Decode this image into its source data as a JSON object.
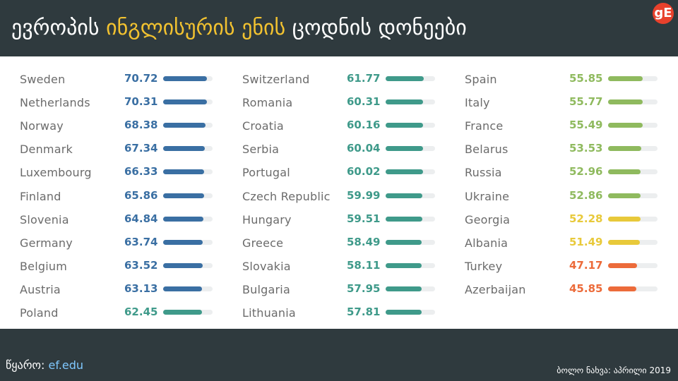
{
  "header": {
    "title_part1": "ევროპის ",
    "title_highlight": "ინგლისურის ენის",
    "title_part2": " ცოდნის დონეები",
    "logo_text": "gE"
  },
  "colors": {
    "very_high": "#3a6fa3",
    "high": "#3f9a8a",
    "moderate": "#8fba5e",
    "low": "#e8c93a",
    "very_low": "#ec6b3a",
    "highlight_title": "#f2c230"
  },
  "footer": {
    "source_label": "წყარო: ",
    "source_link": "ef.edu",
    "last_update": "ბოლო ნახვა: აპრილი 2019"
  },
  "chart_data": {
    "type": "bar",
    "title": "",
    "xlabel": "",
    "ylabel": "",
    "xlim": [
      0,
      80
    ],
    "grid": false,
    "columns": [
      [
        {
          "country": "Sweden",
          "value": 70.72,
          "level": "very_high"
        },
        {
          "country": "Netherlands",
          "value": 70.31,
          "level": "very_high"
        },
        {
          "country": "Norway",
          "value": 68.38,
          "level": "very_high"
        },
        {
          "country": "Denmark",
          "value": 67.34,
          "level": "very_high"
        },
        {
          "country": "Luxembourg",
          "value": 66.33,
          "level": "very_high"
        },
        {
          "country": "Finland",
          "value": 65.86,
          "level": "very_high"
        },
        {
          "country": "Slovenia",
          "value": 64.84,
          "level": "very_high"
        },
        {
          "country": "Germany",
          "value": 63.74,
          "level": "very_high"
        },
        {
          "country": "Belgium",
          "value": 63.52,
          "level": "very_high"
        },
        {
          "country": "Austria",
          "value": 63.13,
          "level": "very_high"
        },
        {
          "country": "Poland",
          "value": 62.45,
          "level": "high"
        }
      ],
      [
        {
          "country": "Switzerland",
          "value": 61.77,
          "level": "high"
        },
        {
          "country": "Romania",
          "value": 60.31,
          "level": "high"
        },
        {
          "country": "Croatia",
          "value": 60.16,
          "level": "high"
        },
        {
          "country": "Serbia",
          "value": 60.04,
          "level": "high"
        },
        {
          "country": "Portugal",
          "value": 60.02,
          "level": "high"
        },
        {
          "country": "Czech Republic",
          "value": 59.99,
          "level": "high"
        },
        {
          "country": "Hungary",
          "value": 59.51,
          "level": "high"
        },
        {
          "country": "Greece",
          "value": 58.49,
          "level": "high"
        },
        {
          "country": "Slovakia",
          "value": 58.11,
          "level": "high"
        },
        {
          "country": "Bulgaria",
          "value": 57.95,
          "level": "high"
        },
        {
          "country": "Lithuania",
          "value": 57.81,
          "level": "high"
        }
      ],
      [
        {
          "country": "Spain",
          "value": 55.85,
          "level": "moderate"
        },
        {
          "country": "Italy",
          "value": 55.77,
          "level": "moderate"
        },
        {
          "country": "France",
          "value": 55.49,
          "level": "moderate"
        },
        {
          "country": "Belarus",
          "value": 53.53,
          "level": "moderate"
        },
        {
          "country": "Russia",
          "value": 52.96,
          "level": "moderate"
        },
        {
          "country": "Ukraine",
          "value": 52.86,
          "level": "moderate"
        },
        {
          "country": "Georgia",
          "value": 52.28,
          "level": "low"
        },
        {
          "country": "Albania",
          "value": 51.49,
          "level": "low"
        },
        {
          "country": "Turkey",
          "value": 47.17,
          "level": "very_low"
        },
        {
          "country": "Azerbaijan",
          "value": 45.85,
          "level": "very_low"
        }
      ]
    ]
  }
}
